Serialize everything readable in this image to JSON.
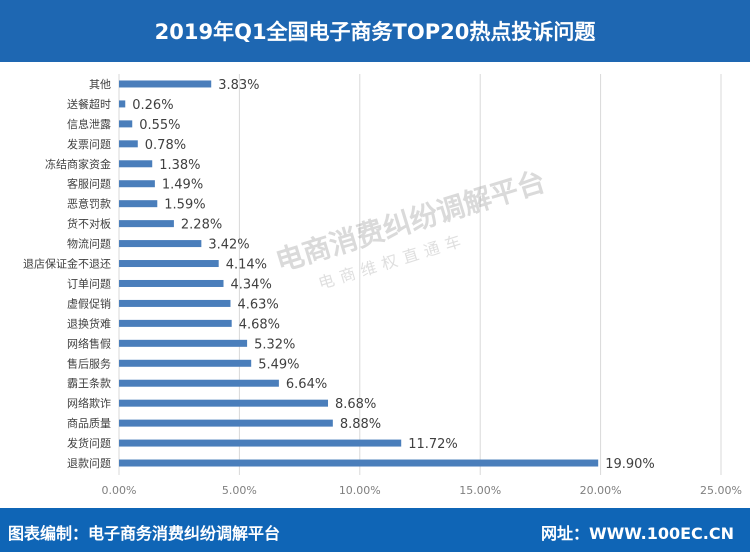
{
  "header": {
    "title": "2019年Q1全国电子商务TOP20热点投诉问题"
  },
  "footer": {
    "left": "图表编制：电子商务消费纠纷调解平台",
    "right": "网址：WWW.100EC.CN"
  },
  "watermark": {
    "line1": "电商消费纠纷调解平台",
    "line2": "电商维权直通车"
  },
  "colors": {
    "bar": "#4a7ebb",
    "header": "#1e67b2",
    "footer": "#0f65b6"
  },
  "chart_data": {
    "type": "bar",
    "orientation": "horizontal",
    "title": "2019年Q1全国电子商务TOP20热点投诉问题",
    "categories": [
      "其他",
      "送餐超时",
      "信息泄露",
      "发票问题",
      "冻结商家资金",
      "客服问题",
      "恶意罚款",
      "货不对板",
      "物流问题",
      "退店保证金不退还",
      "订单问题",
      "虚假促销",
      "退换货难",
      "网络售假",
      "售后服务",
      "霸王条款",
      "网络欺诈",
      "商品质量",
      "发货问题",
      "退款问题"
    ],
    "values": [
      3.83,
      0.26,
      0.55,
      0.78,
      1.38,
      1.49,
      1.59,
      2.28,
      3.42,
      4.14,
      4.34,
      4.63,
      4.68,
      5.32,
      5.49,
      6.64,
      8.68,
      8.88,
      11.72,
      19.9
    ],
    "data_labels": [
      "3.83%",
      "0.26%",
      "0.55%",
      "0.78%",
      "1.38%",
      "1.49%",
      "1.59%",
      "2.28%",
      "3.42%",
      "4.14%",
      "4.34%",
      "4.63%",
      "4.68%",
      "5.32%",
      "5.49%",
      "6.64%",
      "8.68%",
      "8.88%",
      "11.72%",
      "19.90%"
    ],
    "xlim": [
      0,
      25
    ],
    "xticks": [
      "0.00%",
      "5.00%",
      "10.00%",
      "15.00%",
      "20.00%",
      "25.00%"
    ],
    "grid": "vertical",
    "xlabel": "",
    "ylabel": ""
  }
}
